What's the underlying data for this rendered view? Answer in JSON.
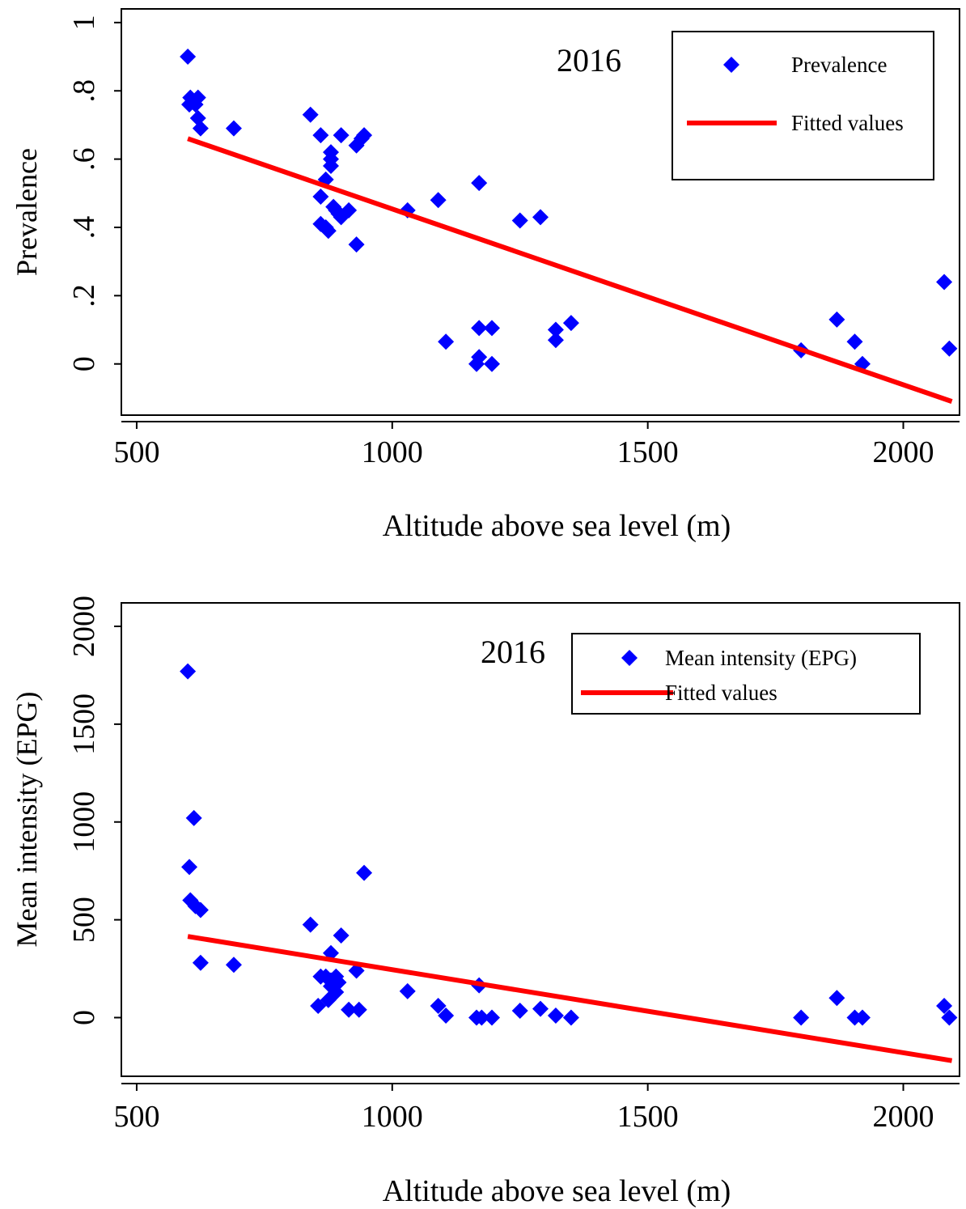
{
  "colors": {
    "points": "#0000ff",
    "fitted_line": "#ff0000",
    "axes": "#000000",
    "background": "#ffffff"
  },
  "chart_data": [
    {
      "type": "scatter",
      "title": "2016",
      "xlabel": "Altitude above sea level (m)",
      "ylabel": "Prevalence",
      "xlim": [
        470,
        2110
      ],
      "ylim": [
        -0.15,
        1.04
      ],
      "xticks": [
        500,
        1000,
        1500,
        2000
      ],
      "xtick_labels": [
        "500",
        "1000",
        "1500",
        "2000"
      ],
      "yticks": [
        0,
        0.2,
        0.4,
        0.6,
        0.8,
        1
      ],
      "ytick_labels": [
        "0",
        ".2",
        ".4",
        ".6",
        ".8",
        "1"
      ],
      "legend_position": "top-right",
      "series": [
        {
          "name": "Prevalence",
          "marker": "diamond",
          "color": "#0000ff",
          "points": [
            [
              600,
              0.9
            ],
            [
              605,
              0.78
            ],
            [
              603,
              0.76
            ],
            [
              615,
              0.76
            ],
            [
              620,
              0.78
            ],
            [
              620,
              0.72
            ],
            [
              625,
              0.69
            ],
            [
              690,
              0.69
            ],
            [
              840,
              0.73
            ],
            [
              860,
              0.67
            ],
            [
              880,
              0.62
            ],
            [
              880,
              0.6
            ],
            [
              880,
              0.58
            ],
            [
              870,
              0.54
            ],
            [
              860,
              0.49
            ],
            [
              860,
              0.41
            ],
            [
              870,
              0.4
            ],
            [
              875,
              0.39
            ],
            [
              885,
              0.46
            ],
            [
              890,
              0.45
            ],
            [
              895,
              0.44
            ],
            [
              900,
              0.43
            ],
            [
              915,
              0.45
            ],
            [
              900,
              0.67
            ],
            [
              930,
              0.64
            ],
            [
              940,
              0.66
            ],
            [
              945,
              0.67
            ],
            [
              930,
              0.35
            ],
            [
              1030,
              0.45
            ],
            [
              1090,
              0.48
            ],
            [
              1105,
              0.065
            ],
            [
              1170,
              0.53
            ],
            [
              1170,
              0.105
            ],
            [
              1195,
              0.105
            ],
            [
              1170,
              0.02
            ],
            [
              1165,
              0.0
            ],
            [
              1195,
              0.0
            ],
            [
              1250,
              0.42
            ],
            [
              1290,
              0.43
            ],
            [
              1320,
              0.1
            ],
            [
              1320,
              0.07
            ],
            [
              1350,
              0.12
            ],
            [
              1800,
              0.04
            ],
            [
              1870,
              0.13
            ],
            [
              1905,
              0.065
            ],
            [
              1920,
              0.0
            ],
            [
              2080,
              0.24
            ],
            [
              2090,
              0.045
            ]
          ]
        },
        {
          "name": "Fitted values",
          "type": "line",
          "color": "#ff0000",
          "points": [
            [
              600,
              0.66
            ],
            [
              2095,
              -0.11
            ]
          ]
        }
      ]
    },
    {
      "type": "scatter",
      "title": "2016",
      "xlabel": "Altitude above sea level (m)",
      "ylabel": "Mean intensity (EPG)",
      "xlim": [
        470,
        2110
      ],
      "ylim": [
        -300,
        2120
      ],
      "xticks": [
        500,
        1000,
        1500,
        2000
      ],
      "xtick_labels": [
        "500",
        "1000",
        "1500",
        "2000"
      ],
      "yticks": [
        0,
        500,
        1000,
        1500,
        2000
      ],
      "ytick_labels": [
        "0",
        "500",
        "1000",
        "1500",
        "2000"
      ],
      "legend_position": "top-right",
      "series": [
        {
          "name": "Mean intensity (EPG)",
          "marker": "diamond",
          "color": "#0000ff",
          "points": [
            [
              600,
              1770
            ],
            [
              612,
              1020
            ],
            [
              603,
              770
            ],
            [
              605,
              600
            ],
            [
              615,
              570
            ],
            [
              625,
              550
            ],
            [
              625,
              280
            ],
            [
              690,
              270
            ],
            [
              840,
              475
            ],
            [
              860,
              210
            ],
            [
              855,
              60
            ],
            [
              870,
              210
            ],
            [
              875,
              90
            ],
            [
              880,
              330
            ],
            [
              880,
              190
            ],
            [
              880,
              160
            ],
            [
              890,
              210
            ],
            [
              895,
              180
            ],
            [
              890,
              130
            ],
            [
              900,
              420
            ],
            [
              915,
              40
            ],
            [
              930,
              240
            ],
            [
              935,
              40
            ],
            [
              945,
              740
            ],
            [
              1030,
              135
            ],
            [
              1090,
              60
            ],
            [
              1105,
              10
            ],
            [
              1170,
              165
            ],
            [
              1165,
              0
            ],
            [
              1175,
              0
            ],
            [
              1195,
              0
            ],
            [
              1250,
              35
            ],
            [
              1290,
              45
            ],
            [
              1320,
              10
            ],
            [
              1350,
              0
            ],
            [
              1800,
              0
            ],
            [
              1870,
              100
            ],
            [
              1905,
              0
            ],
            [
              1920,
              0
            ],
            [
              2080,
              60
            ],
            [
              2090,
              0
            ]
          ]
        },
        {
          "name": "Fitted values",
          "type": "line",
          "color": "#ff0000",
          "points": [
            [
              600,
              415
            ],
            [
              2095,
              -220
            ]
          ]
        }
      ]
    }
  ]
}
